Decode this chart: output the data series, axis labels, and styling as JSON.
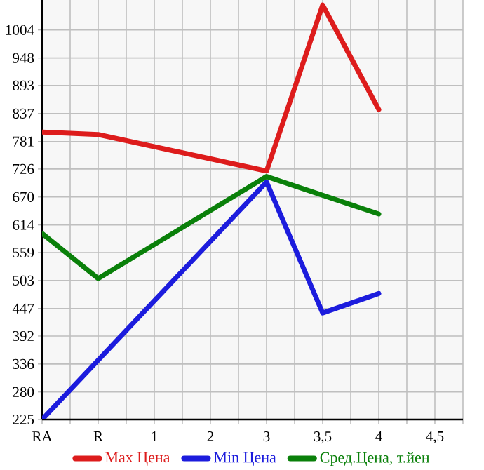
{
  "chart_data": {
    "type": "line",
    "categories": [
      "RA",
      "R",
      "1",
      "2",
      "3",
      "3,5",
      "4",
      "4,5"
    ],
    "series": [
      {
        "name": "Max Цена",
        "color": "#dd1c1c",
        "values": [
          800,
          795,
          null,
          null,
          722,
          1054,
          845,
          null
        ]
      },
      {
        "name": "Min Цена",
        "color": "#1c1cdd",
        "values": [
          225,
          null,
          null,
          null,
          700,
          438,
          477,
          null
        ]
      },
      {
        "name": "Сред.Цена, т.йен",
        "color": "#0a800a",
        "values": [
          597,
          507,
          null,
          null,
          711,
          null,
          636,
          null
        ]
      }
    ],
    "ylim": [
      225,
      1064
    ],
    "yticks": [
      225,
      280,
      336,
      392,
      447,
      503,
      559,
      614,
      670,
      726,
      781,
      837,
      893,
      948,
      1004
    ],
    "grid": true,
    "legend": "bottom",
    "marker": "none",
    "line_style": "solid"
  }
}
